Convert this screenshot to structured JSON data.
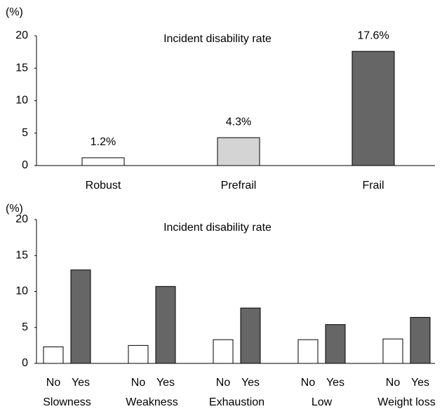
{
  "chart_data": [
    {
      "type": "bar",
      "title": "Incident disability rate",
      "y_label": "(%)",
      "categories": [
        "Robust",
        "Prefrail",
        "Frail"
      ],
      "values": [
        1.2,
        4.3,
        17.6
      ],
      "value_labels": [
        "1.2%",
        "4.3%",
        "17.6%"
      ],
      "colors": [
        "#ffffff",
        "#d4d4d4",
        "#666666"
      ],
      "ylim": [
        0,
        20
      ],
      "yticks": [
        0,
        5,
        10,
        15,
        20
      ]
    },
    {
      "type": "grouped_bar",
      "title": "Incident disability rate",
      "y_label": "(%)",
      "categories": [
        "Slowness",
        "Weakness",
        "Exhaustion",
        "Low",
        "Weight loss"
      ],
      "series": [
        {
          "name": "No",
          "color": "#ffffff",
          "values": [
            2.3,
            2.5,
            3.3,
            3.3,
            3.4
          ]
        },
        {
          "name": "Yes",
          "color": "#666666",
          "values": [
            13.0,
            10.7,
            7.7,
            5.4,
            6.4
          ]
        }
      ],
      "ylim": [
        0,
        20
      ],
      "yticks": [
        0,
        5,
        10,
        15,
        20
      ]
    }
  ]
}
